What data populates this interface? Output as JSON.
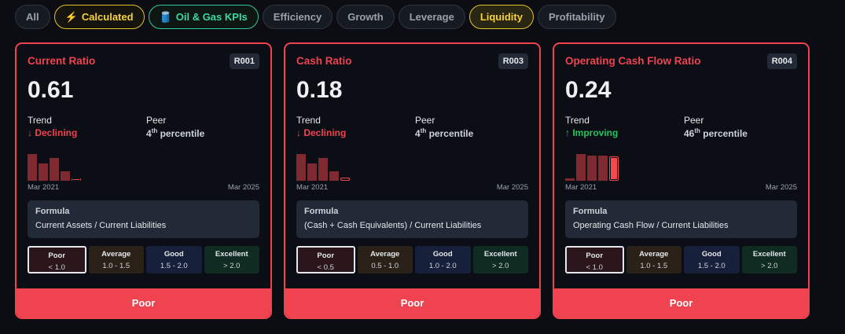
{
  "filters": [
    {
      "label": "All",
      "icon": ""
    },
    {
      "label": "Calculated",
      "icon": "⚡"
    },
    {
      "label": "Oil & Gas KPIs",
      "icon": "🛢️"
    },
    {
      "label": "Efficiency",
      "icon": ""
    },
    {
      "label": "Growth",
      "icon": ""
    },
    {
      "label": "Leverage",
      "icon": ""
    },
    {
      "label": "Liquidity",
      "icon": ""
    },
    {
      "label": "Profitability",
      "icon": ""
    }
  ],
  "colors": {
    "poor": "#ef4350",
    "improving": "#22c55e",
    "declining": "#ef4350"
  },
  "labels": {
    "trend": "Trend",
    "peer": "Peer",
    "formula": "Formula",
    "percentile": "percentile"
  },
  "cards": [
    {
      "title": "Current Ratio",
      "code": "R001",
      "value": "0.61",
      "trend": "↓ Declining",
      "trend_dir": "down",
      "peer_num": "4",
      "peer_suffix": "th",
      "spark": [
        1.0,
        0.65,
        0.85,
        0.35,
        0.1
      ],
      "start": "Mar 2021",
      "end": "Mar 2025",
      "formula": "Current Assets / Current Liabilities",
      "bands": [
        {
          "name": "Poor",
          "range": "< 1.0"
        },
        {
          "name": "Average",
          "range": "1.0 - 1.5"
        },
        {
          "name": "Good",
          "range": "1.5 - 2.0"
        },
        {
          "name": "Excellent",
          "range": "> 2.0"
        }
      ],
      "active": 0,
      "rating": "Poor"
    },
    {
      "title": "Cash Ratio",
      "code": "R003",
      "value": "0.18",
      "trend": "↓ Declining",
      "trend_dir": "down",
      "peer_num": "4",
      "peer_suffix": "th",
      "spark": [
        1.0,
        0.65,
        0.85,
        0.35,
        0.12
      ],
      "start": "Mar 2021",
      "end": "Mar 2025",
      "formula": "(Cash + Cash Equivalents) / Current Liabilities",
      "bands": [
        {
          "name": "Poor",
          "range": "< 0.5"
        },
        {
          "name": "Average",
          "range": "0.5 - 1.0"
        },
        {
          "name": "Good",
          "range": "1.0 - 2.0"
        },
        {
          "name": "Excellent",
          "range": "> 2.0"
        }
      ],
      "active": 0,
      "rating": "Poor"
    },
    {
      "title": "Operating Cash Flow Ratio",
      "code": "R004",
      "value": "0.24",
      "trend": "↑ Improving",
      "trend_dir": "up",
      "peer_num": "46",
      "peer_suffix": "th",
      "spark": [
        0.1,
        1.0,
        0.94,
        0.94,
        0.9
      ],
      "start": "Mar 2021",
      "end": "Mar 2025",
      "formula": "Operating Cash Flow / Current Liabilities",
      "bands": [
        {
          "name": "Poor",
          "range": "< 1.0"
        },
        {
          "name": "Average",
          "range": "1.0 - 1.5"
        },
        {
          "name": "Good",
          "range": "1.5 - 2.0"
        },
        {
          "name": "Excellent",
          "range": "> 2.0"
        }
      ],
      "active": 0,
      "rating": "Poor"
    }
  ]
}
